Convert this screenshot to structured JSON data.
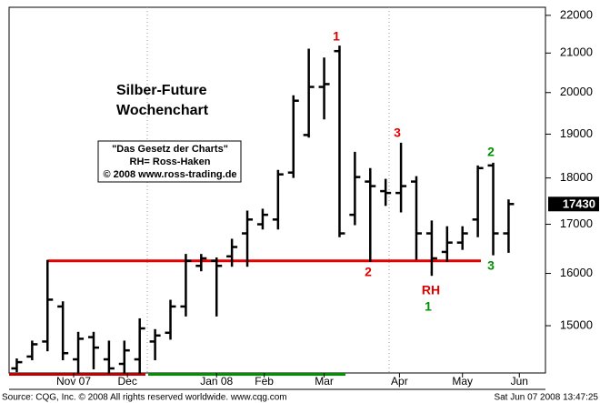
{
  "chart_data": {
    "type": "ohlc",
    "title": "Silber-Future",
    "subtitle": "Wochenchart",
    "info_box": [
      "\"Das Gesetz der Charts\"",
      "RH= Ross-Haken",
      "© 2008 www.ross-trading.de"
    ],
    "footer_left": "Source: CQG, Inc. © 2008 All rights reserved worldwide. www.cqg.com",
    "footer_right": "Sat Jun 07 2008 13:47:25",
    "log_scale": true,
    "ylim": [
      14150,
      22220
    ],
    "yticks": [
      15000,
      16000,
      17000,
      18000,
      19000,
      20000,
      21000,
      22000
    ],
    "xlim": [
      -0.5,
      34.4
    ],
    "xticks": [
      {
        "value": 3.7,
        "label": "Nov 07"
      },
      {
        "value": 7.2,
        "label": "Dec"
      },
      {
        "value": 13,
        "label": "Jan 08"
      },
      {
        "value": 16.1,
        "label": "Feb"
      },
      {
        "value": 20,
        "label": "Mar"
      },
      {
        "value": 24.9,
        "label": "Apr"
      },
      {
        "value": 29,
        "label": "May"
      },
      {
        "value": 32.7,
        "label": "Jun"
      }
    ],
    "color": "#000000",
    "series": {
      "open": [
        14230,
        14440,
        14710,
        15360,
        14390,
        14790,
        14390,
        14310,
        14390,
        14710,
        14870,
        15360,
        16150,
        16250,
        16340,
        16810,
        17000,
        17100,
        18120,
        18980,
        20140,
        21050,
        17200,
        17920,
        17710,
        17670,
        17920,
        16810,
        16430,
        16620,
        17100,
        18280,
        16810
      ],
      "high": [
        14390,
        14710,
        16250,
        15440,
        14870,
        14870,
        14710,
        14710,
        15120,
        14920,
        15470,
        16370,
        16370,
        16300,
        16680,
        17270,
        17310,
        18160,
        19910,
        21090,
        20860,
        21170,
        18570,
        18200,
        17960,
        18780,
        18020,
        17060,
        16940,
        16940,
        18260,
        18320,
        17510
      ],
      "low": [
        14180,
        14390,
        14550,
        14390,
        14150,
        14230,
        14150,
        14150,
        14150,
        14390,
        14760,
        15190,
        16060,
        15190,
        16150,
        16150,
        16910,
        16910,
        18020,
        18940,
        19370,
        16750,
        17000,
        16250,
        17410,
        17270,
        16290,
        15970,
        16250,
        16490,
        16750,
        16380,
        16430
      ],
      "close": [
        14340,
        14660,
        15490,
        14500,
        14760,
        14600,
        14230,
        14550,
        14950,
        14820,
        15360,
        16250,
        16300,
        16150,
        16530,
        17100,
        17200,
        18080,
        19800,
        20140,
        20210,
        16810,
        18020,
        17820,
        17670,
        17820,
        16810,
        16300,
        16620,
        16810,
        18220,
        16810,
        17430
      ]
    },
    "last_price": 17430,
    "support_line": {
      "value": 16250,
      "x": [
        2,
        30.2
      ],
      "color": "#e00000"
    },
    "annotations": [
      {
        "text": "1",
        "color": "#e00000"
      },
      {
        "text": "3",
        "color": "#e00000"
      },
      {
        "text": "2",
        "color": "#e00000"
      },
      {
        "text": "RH",
        "color": "#e00000"
      },
      {
        "text": "1",
        "color": "#009000"
      },
      {
        "text": "2",
        "color": "#009000"
      },
      {
        "text": "3",
        "color": "#009000"
      }
    ]
  }
}
